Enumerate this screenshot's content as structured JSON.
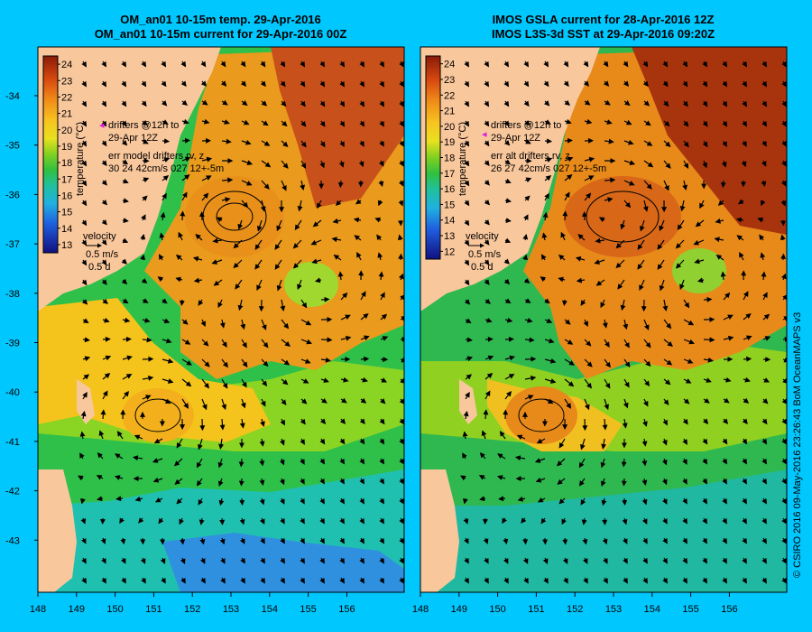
{
  "left_panel": {
    "title_line1": "OM_an01 10-15m temp. 29-Apr-2016",
    "title_line2": "OM_an01 10-15m current for 29-Apr-2016 00Z",
    "colorbar": {
      "ticks": [
        "24",
        "23",
        "22",
        "21",
        "20",
        "19",
        "18",
        "17",
        "16",
        "15",
        "14",
        "13"
      ],
      "label": "temperature (°C)"
    },
    "drifters_line1": "drifters @12h to",
    "drifters_line2": "29-Apr 12Z",
    "err_line1": "err model drifters rv, z",
    "err_line2": "30 24 42cm/s 027 12+-5m",
    "velocity_label": "velocity",
    "velocity_scale": "0.5 m/s",
    "velocity_days": "0.5 d"
  },
  "right_panel": {
    "title_line1": "IMOS GSLA current for 28-Apr-2016 12Z",
    "title_line2": "IMOS L3S-3d SST at 29-Apr-2016 09:20Z",
    "colorbar": {
      "ticks": [
        "24",
        "23",
        "22",
        "21",
        "20",
        "19",
        "18",
        "17",
        "16",
        "15",
        "14",
        "13",
        "12"
      ],
      "label": "temperature (°C)"
    },
    "drifters_line1": "drifters @12h to",
    "drifters_line2": "29-Apr 12Z",
    "err_line1": "err alt drifters rv, z",
    "err_line2": "26 27 42cm/s 027 12+-5m",
    "velocity_label": "velocity",
    "velocity_scale": "0.5 m/s",
    "velocity_days": "0.5 d"
  },
  "axes": {
    "y_ticks": [
      "-34",
      "-35",
      "-36",
      "-37",
      "-38",
      "-39",
      "-40",
      "-41",
      "-42",
      "-43"
    ],
    "x_ticks": [
      "148",
      "149",
      "150",
      "151",
      "152",
      "153",
      "154",
      "155",
      "156"
    ]
  },
  "colors": {
    "background": "#00c8ff",
    "land": "#f9c79c",
    "warm": "#e8901a",
    "hot": "#b83a10",
    "mid": "#f4c41c",
    "green": "#3cc83c",
    "cool": "#20c0b8",
    "cold": "#2080e0"
  },
  "copyright": "© CSIRO 2016  09-May-2016 23:26:43 BoM OceanMAPS v3"
}
